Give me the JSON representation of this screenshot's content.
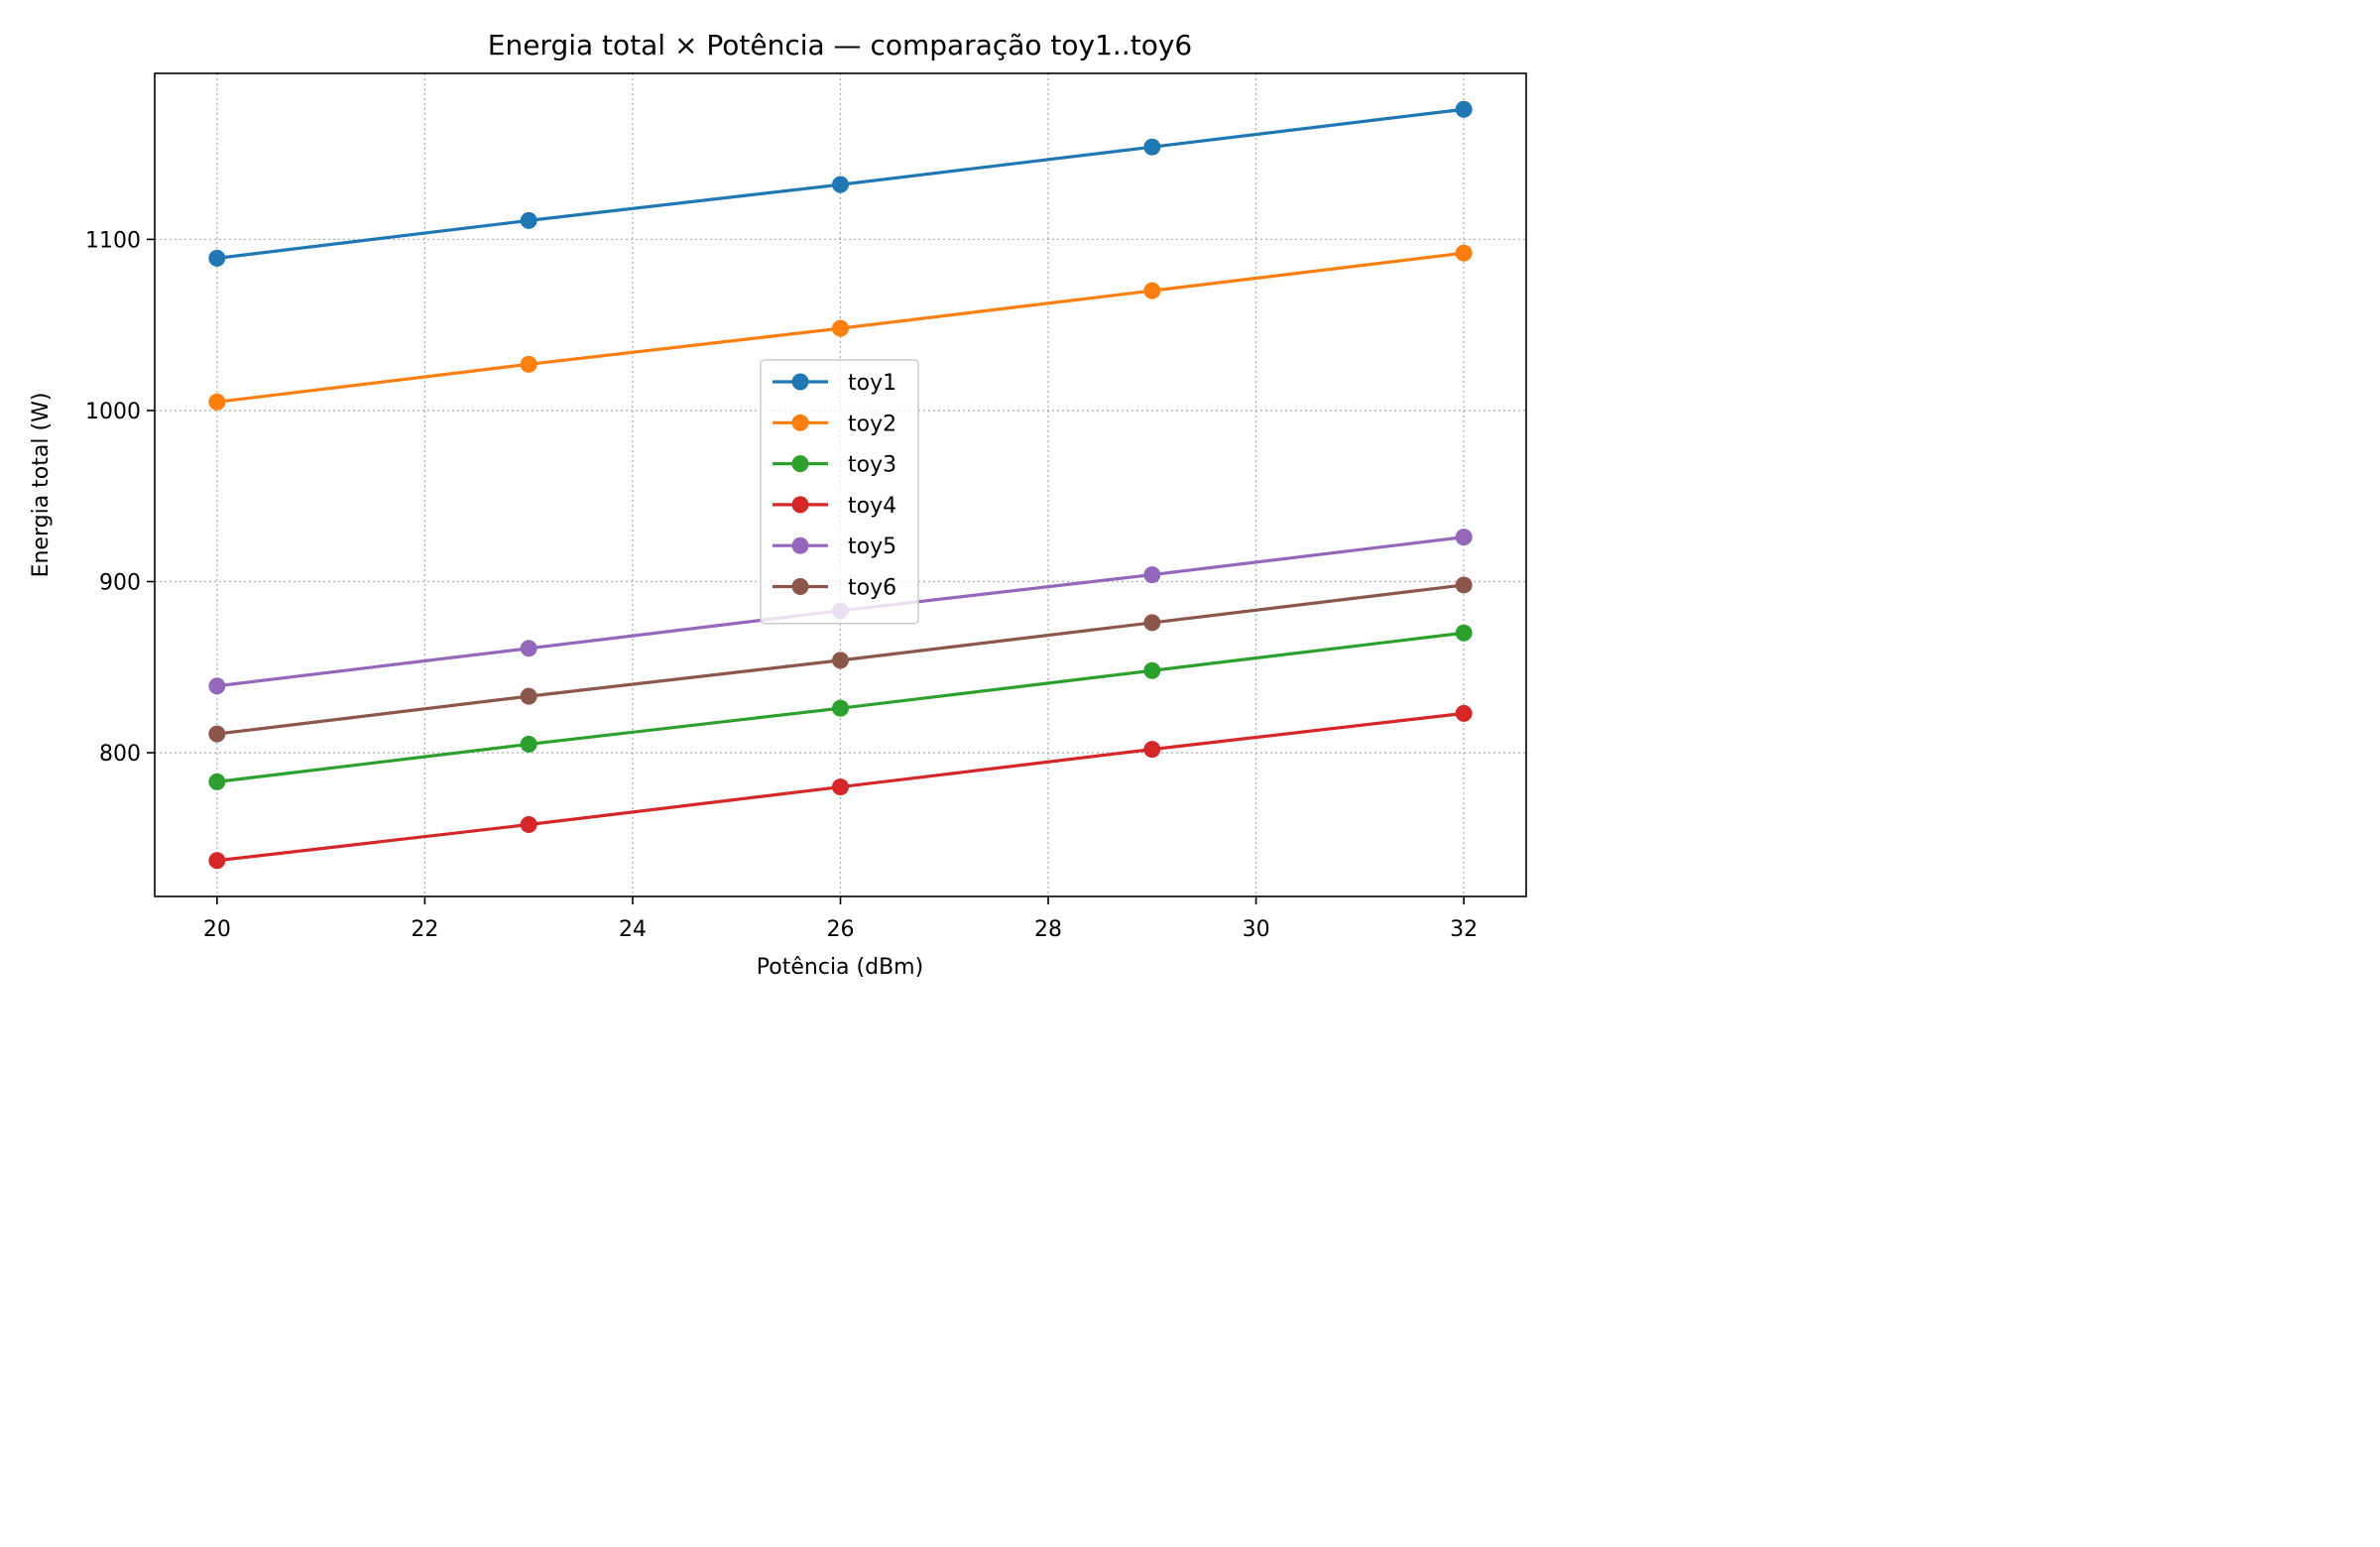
{
  "chart_data": {
    "type": "line",
    "title": "Energia total × Potência — comparação toy1..toy6",
    "xlabel": "Potência (dBm)",
    "ylabel": "Energia total (W)",
    "x": [
      20,
      23,
      26,
      29,
      32
    ],
    "xlim": [
      19.4,
      32.6
    ],
    "ylim": [
      716,
      1197
    ],
    "xticks": [
      20,
      22,
      24,
      26,
      28,
      30,
      32
    ],
    "yticks": [
      800,
      900,
      1000,
      1100
    ],
    "grid": true,
    "legend_position": "center",
    "series": [
      {
        "name": "toy1",
        "color": "#1f77b4",
        "values": [
          1089,
          1111,
          1132,
          1154,
          1176
        ]
      },
      {
        "name": "toy2",
        "color": "#ff7f0e",
        "values": [
          1005,
          1027,
          1048,
          1070,
          1092
        ]
      },
      {
        "name": "toy3",
        "color": "#2ca02c",
        "values": [
          783,
          805,
          826,
          848,
          870
        ]
      },
      {
        "name": "toy4",
        "color": "#d62728",
        "values": [
          737,
          758,
          780,
          802,
          823
        ]
      },
      {
        "name": "toy5",
        "color": "#9467bd",
        "values": [
          839,
          861,
          883,
          904,
          926
        ]
      },
      {
        "name": "toy6",
        "color": "#8c564b",
        "values": [
          811,
          833,
          854,
          876,
          898
        ]
      }
    ]
  }
}
